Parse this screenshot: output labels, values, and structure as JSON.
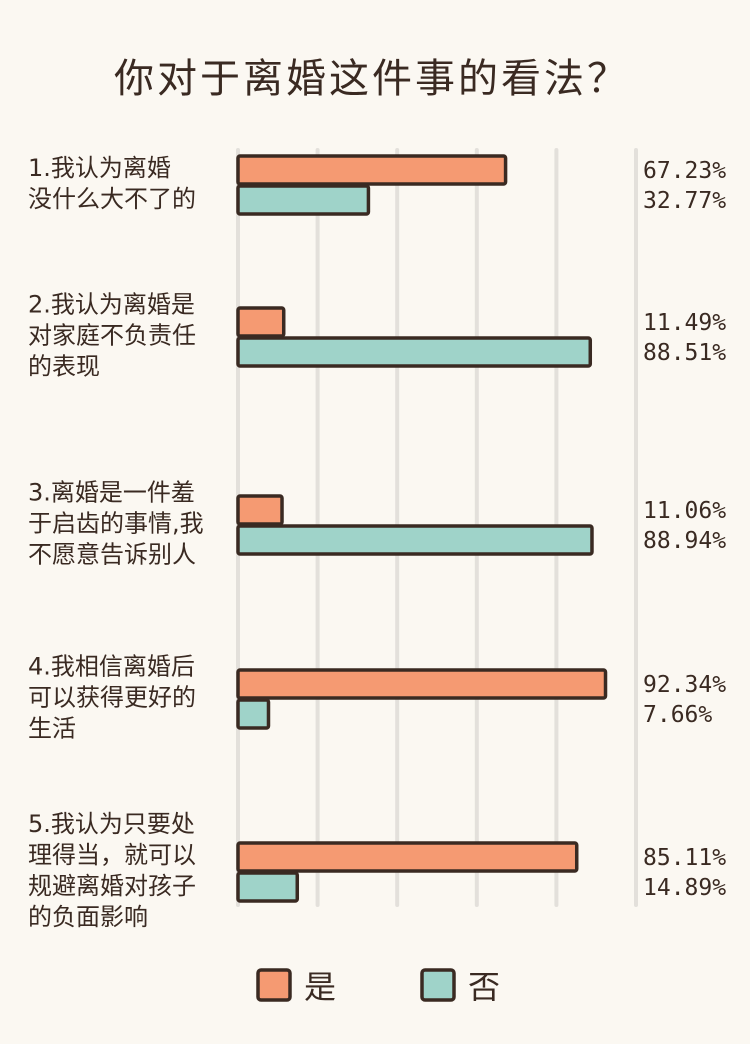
{
  "chart_data": {
    "type": "bar",
    "orientation": "horizontal",
    "title": "你对于离婚这件事的看法？",
    "xlim": [
      0,
      100
    ],
    "grid": true,
    "legend_position": "bottom",
    "categories": [
      [
        "1.我认为离婚",
        "没什么大不了的"
      ],
      [
        "2.我认为离婚是",
        "对家庭不负责任",
        "的表现"
      ],
      [
        "3.离婚是一件羞",
        "于启齿的事情,我",
        "不愿意告诉别人"
      ],
      [
        "4.我相信离婚后",
        "可以获得更好的",
        "生活"
      ],
      [
        "5.我认为只要处",
        "理得当，就可以",
        "规避离婚对孩子",
        "的负面影响"
      ]
    ],
    "series": [
      {
        "name": "是",
        "color": "#f59a72",
        "values": [
          67.23,
          11.49,
          11.06,
          92.34,
          85.11
        ],
        "labels": [
          "67.23%",
          "11.49%",
          "11.06%",
          "92.34%",
          "85.11%"
        ]
      },
      {
        "name": "否",
        "color": "#9fd3c9",
        "values": [
          32.77,
          88.51,
          88.94,
          7.66,
          14.89
        ],
        "labels": [
          "32.77%",
          "88.51%",
          "88.94%",
          "7.66%",
          "14.89%"
        ]
      }
    ]
  }
}
